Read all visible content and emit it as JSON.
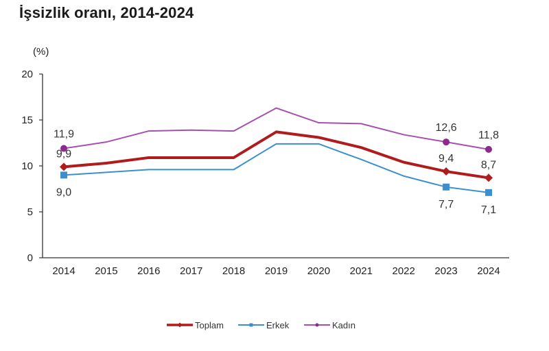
{
  "chart_data": {
    "type": "line",
    "title": "İşsizlik oranı, 2014-2024",
    "ylabel": "(%)",
    "xlabel": "",
    "ylim": [
      0,
      20
    ],
    "yticks": [
      0,
      5,
      10,
      15,
      20
    ],
    "grid": false,
    "legend_position": "bottom",
    "categories": [
      "2014",
      "2015",
      "2016",
      "2017",
      "2018",
      "2019",
      "2020",
      "2021",
      "2022",
      "2023",
      "2024"
    ],
    "series": [
      {
        "name": "Toplam",
        "color": "#b01c1c",
        "marker": "diamond",
        "values": [
          9.9,
          10.3,
          10.9,
          10.9,
          10.9,
          13.7,
          13.1,
          12.0,
          10.4,
          9.4,
          8.7
        ],
        "labels": {
          "0": "9,9",
          "9": "9,4",
          "10": "8,7"
        }
      },
      {
        "name": "Erkek",
        "color": "#3b8fd0",
        "marker": "square",
        "values": [
          9.0,
          9.3,
          9.6,
          9.6,
          9.6,
          12.4,
          12.4,
          10.7,
          8.9,
          7.7,
          7.1
        ],
        "labels": {
          "0": "9,0",
          "9": "7,7",
          "10": "7,1"
        }
      },
      {
        "name": "Kadın",
        "color": "#a64fb0",
        "marker": "circle",
        "marker_color": "#8e2a8e",
        "values": [
          11.9,
          12.6,
          13.8,
          13.9,
          13.8,
          16.3,
          14.7,
          14.6,
          13.4,
          12.6,
          11.8
        ],
        "labels": {
          "0": "11,9",
          "9": "12,6",
          "10": "11,8"
        }
      }
    ],
    "legend": [
      "Toplam",
      "Erkek",
      "Kadın"
    ]
  }
}
